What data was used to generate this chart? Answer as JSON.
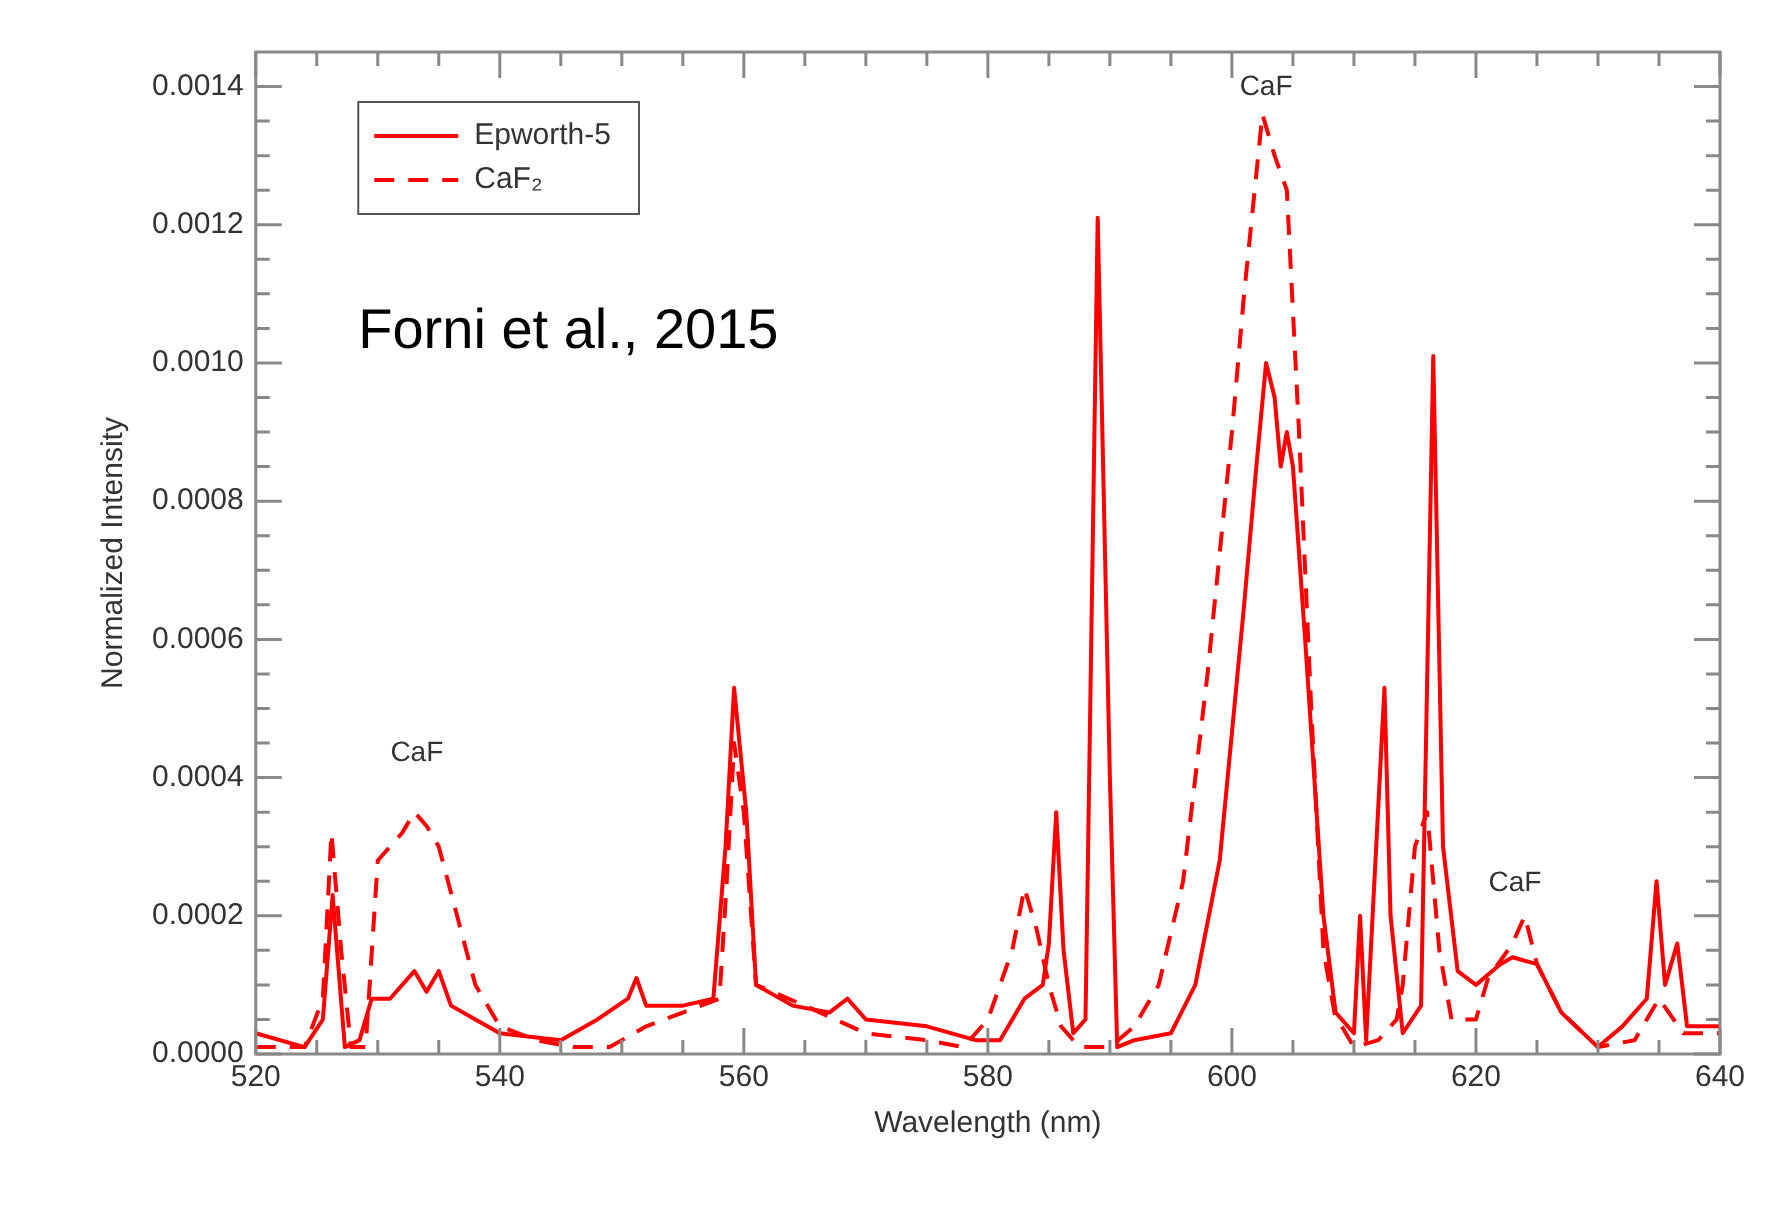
{
  "chart_data": {
    "type": "line",
    "xlabel": "Wavelength (nm)",
    "ylabel": "Normalized Intensity",
    "xlim": [
      520,
      640
    ],
    "ylim": [
      0,
      0.00145
    ],
    "xticks": [
      520,
      {
        "value": 525,
        "label": null
      },
      {
        "value": 530,
        "label": null
      },
      {
        "value": 535,
        "label": null
      },
      540,
      {
        "value": 545,
        "label": null
      },
      {
        "value": 550,
        "label": null
      },
      {
        "value": 555,
        "label": null
      },
      560,
      {
        "value": 565,
        "label": null
      },
      {
        "value": 570,
        "label": null
      },
      {
        "value": 575,
        "label": null
      },
      580,
      {
        "value": 585,
        "label": null
      },
      {
        "value": 590,
        "label": null
      },
      {
        "value": 595,
        "label": null
      },
      600,
      {
        "value": 605,
        "label": null
      },
      {
        "value": 610,
        "label": null
      },
      {
        "value": 615,
        "label": null
      },
      620,
      {
        "value": 625,
        "label": null
      },
      {
        "value": 630,
        "label": null
      },
      {
        "value": 635,
        "label": null
      },
      640
    ],
    "yticks": [
      {
        "value": 0,
        "label": "0.0000"
      },
      {
        "value": 5e-05,
        "label": null
      },
      {
        "value": 0.0001,
        "label": null
      },
      {
        "value": 0.00015,
        "label": null
      },
      {
        "value": 0.0002,
        "label": "0.0002"
      },
      {
        "value": 0.00025,
        "label": null
      },
      {
        "value": 0.0003,
        "label": null
      },
      {
        "value": 0.00035,
        "label": null
      },
      {
        "value": 0.0004,
        "label": "0.0004"
      },
      {
        "value": 0.00045,
        "label": null
      },
      {
        "value": 0.0005,
        "label": null
      },
      {
        "value": 0.00055,
        "label": null
      },
      {
        "value": 0.0006,
        "label": "0.0006"
      },
      {
        "value": 0.00065,
        "label": null
      },
      {
        "value": 0.0007,
        "label": null
      },
      {
        "value": 0.00075,
        "label": null
      },
      {
        "value": 0.0008,
        "label": "0.0008"
      },
      {
        "value": 0.00085,
        "label": null
      },
      {
        "value": 0.0009,
        "label": null
      },
      {
        "value": 0.00095,
        "label": null
      },
      {
        "value": 0.001,
        "label": "0.0010"
      },
      {
        "value": 0.00105,
        "label": null
      },
      {
        "value": 0.0011,
        "label": null
      },
      {
        "value": 0.00115,
        "label": null
      },
      {
        "value": 0.0012,
        "label": "0.0012"
      },
      {
        "value": 0.00125,
        "label": null
      },
      {
        "value": 0.0013,
        "label": null
      },
      {
        "value": 0.00135,
        "label": null
      },
      {
        "value": 0.0014,
        "label": "0.0014"
      }
    ],
    "grid": false,
    "legend": "top left",
    "marker": "none",
    "series": [
      {
        "name": "Epworth-5",
        "color": "#ff0000",
        "line_style": "solid",
        "x": [
          520,
          524,
          525.5,
          526.3,
          527.3,
          528.5,
          529.5,
          531,
          533,
          534,
          535,
          536,
          538,
          540,
          545,
          548,
          550.5,
          551.2,
          552,
          555,
          557.5,
          558.5,
          559.2,
          560.2,
          561,
          564,
          567,
          568.5,
          570,
          575,
          579,
          581,
          583,
          584.5,
          585,
          585.6,
          586.2,
          587,
          588,
          589,
          590,
          590.6,
          592,
          595,
          597,
          599,
          601,
          602,
          602.8,
          603.5,
          604,
          604.5,
          605,
          606,
          607.5,
          608.5,
          610,
          610.5,
          611,
          612.5,
          613,
          614,
          615.5,
          616.5,
          617.3,
          618.5,
          620,
          622,
          623,
          625,
          627,
          630,
          632,
          634,
          634.8,
          635.5,
          636.5,
          637.3,
          640
        ],
        "values": [
          3e-05,
          1e-05,
          5e-05,
          0.00023,
          1e-05,
          2e-05,
          8e-05,
          8e-05,
          0.00012,
          9e-05,
          0.00012,
          7e-05,
          5e-05,
          3e-05,
          2e-05,
          5e-05,
          8e-05,
          0.00011,
          7e-05,
          7e-05,
          8e-05,
          0.0003,
          0.00053,
          0.00035,
          0.0001,
          7e-05,
          6e-05,
          8e-05,
          5e-05,
          4e-05,
          2e-05,
          2e-05,
          8e-05,
          0.0001,
          0.00016,
          0.00035,
          0.00015,
          3e-05,
          5e-05,
          0.00121,
          0.0004,
          1e-05,
          2e-05,
          3e-05,
          0.0001,
          0.00028,
          0.00065,
          0.00085,
          0.001,
          0.00095,
          0.00085,
          0.0009,
          0.00085,
          0.0006,
          0.0002,
          6e-05,
          3e-05,
          0.0002,
          2e-05,
          0.00053,
          0.0002,
          3e-05,
          7e-05,
          0.00101,
          0.0003,
          0.00012,
          0.0001,
          0.00013,
          0.00014,
          0.00013,
          6e-05,
          1e-05,
          4e-05,
          8e-05,
          0.00025,
          0.0001,
          0.00016,
          4e-05,
          4e-05
        ]
      },
      {
        "name": "CaF₂",
        "color": "#ff0000",
        "line_style": "dashed",
        "x": [
          520,
          524,
          525.5,
          526.2,
          527,
          527.8,
          529,
          530,
          531,
          532,
          533,
          534,
          535,
          536.5,
          538,
          540,
          543,
          546,
          549,
          552,
          555,
          558,
          558.6,
          559.2,
          560,
          561,
          565,
          570,
          575,
          578,
          580,
          582,
          583,
          584,
          585,
          586,
          587.5,
          590,
          592,
          594,
          596,
          598,
          600,
          601,
          602.5,
          603.5,
          604.5,
          605.5,
          606.5,
          607.5,
          608.5,
          609,
          610,
          612,
          613.5,
          614,
          615,
          616,
          617,
          618,
          620,
          621,
          623,
          624,
          625,
          627,
          630,
          633,
          635,
          637,
          640
        ],
        "values": [
          1e-05,
          1e-05,
          8e-05,
          0.00032,
          0.00015,
          1e-05,
          1e-05,
          0.00028,
          0.0003,
          0.00032,
          0.00035,
          0.00033,
          0.0003,
          0.0002,
          0.0001,
          4e-05,
          2e-05,
          1e-05,
          1e-05,
          4e-05,
          6e-05,
          8e-05,
          0.00025,
          0.00045,
          0.00035,
          0.0001,
          7e-05,
          3e-05,
          2e-05,
          1e-05,
          5e-05,
          0.00015,
          0.00024,
          0.00018,
          0.0001,
          4e-05,
          1e-05,
          1e-05,
          4e-05,
          0.0001,
          0.00025,
          0.00055,
          0.0009,
          0.0011,
          0.00136,
          0.0013,
          0.00125,
          0.0009,
          0.0005,
          0.00015,
          5e-05,
          4e-05,
          1e-05,
          2e-05,
          5e-05,
          0.0001,
          0.0003,
          0.00035,
          0.00015,
          5e-05,
          5e-05,
          0.00011,
          0.00016,
          0.0002,
          0.00013,
          6e-05,
          1e-05,
          2e-05,
          8e-05,
          3e-05,
          3e-05
        ]
      }
    ],
    "annotations": [
      "CaF",
      "CaF",
      "CaF",
      "Forni et al., 2015"
    ]
  }
}
